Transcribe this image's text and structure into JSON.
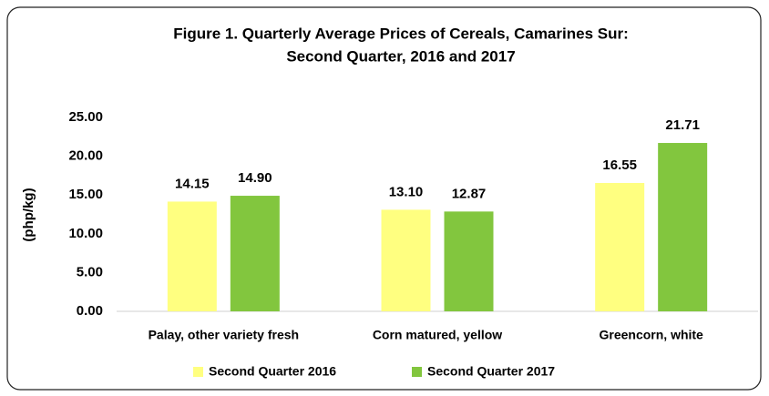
{
  "chart_data": {
    "type": "bar",
    "title_lines": [
      "Figure 1. Quarterly Average Prices of Cereals, Camarines Sur:",
      "Second Quarter, 2016 and 2017"
    ],
    "y_label": "(php/kg)",
    "categories": [
      "Palay, other variety fresh",
      "Corn matured, yellow",
      "Greencorn, white"
    ],
    "series": [
      {
        "name": "Second Quarter 2016",
        "color": "#ffff80",
        "values": [
          14.15,
          13.1,
          16.55
        ],
        "value_labels": [
          "14.15",
          "13.10",
          "16.55"
        ]
      },
      {
        "name": "Second Quarter 2017",
        "color": "#82c63e",
        "values": [
          14.9,
          12.87,
          21.71
        ],
        "value_labels": [
          "14.90",
          "12.87",
          "21.71"
        ]
      }
    ],
    "ylim": [
      0,
      25
    ],
    "yticks": [
      {
        "value": 0,
        "label": "0.00"
      },
      {
        "value": 5,
        "label": "5.00"
      },
      {
        "value": 10,
        "label": "10.00"
      },
      {
        "value": 15,
        "label": "15.00"
      },
      {
        "value": 20,
        "label": "20.00"
      },
      {
        "value": 25,
        "label": "25.00"
      }
    ],
    "grid": false,
    "legend": "bottom"
  }
}
